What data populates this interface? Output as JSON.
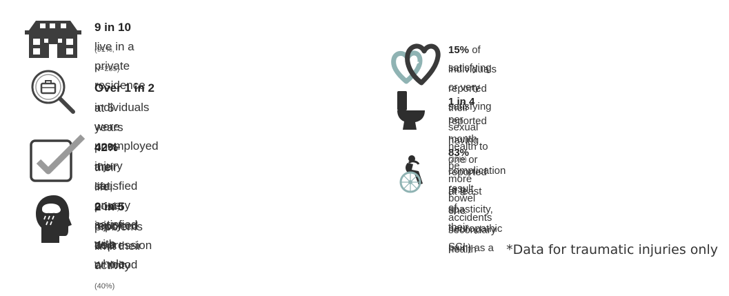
{
  "left_items": [
    {
      "icon": "house-icon",
      "bold": "9 in 10",
      "line1": " live in a private residence",
      "note": "(91%, N=285)",
      "line2": ""
    },
    {
      "icon": "job-search-icon",
      "bold": "Over 1 in 2",
      "line1": " individuals were unemployed",
      "line2": "at 5 years post-injury",
      "note": "(59%, N=210)"
    },
    {
      "icon": "checkbox-icon",
      "bold": "42%",
      "line1": " are satisfied or very satisfied with",
      "line2": "their life, post-injury as a whole",
      "note": ""
    },
    {
      "icon": "head-rain-cloud-icon",
      "bold": "2 in 5",
      "line1": " reported depression or mood",
      "line2": "problems limit their activity",
      "note": "(40%)"
    }
  ],
  "right_items": [
    {
      "icon": "hearts-icon",
      "bold": "15%",
      "line1": " of individuals reported their sexual health to be",
      "line2": "satisfying or very satisfying",
      "line3": "",
      "note": ""
    },
    {
      "icon": "toilet-icon",
      "bold": "1 in 4",
      "line1": " reported having one or more bowel accidents",
      "line2": "per month",
      "line3": "",
      "note": "(25%)"
    },
    {
      "icon": "wheelchair-icon",
      "bold": "83%",
      "line1": " reported at least one secondary health",
      "line2": "complication (e.g. spasticity, neuropathic pain) as a",
      "line3": "result of their SCI",
      "note": ""
    }
  ],
  "footnote": "*Data for traumatic injuries only",
  "colors": {
    "icon_dark": "#3d3d3d",
    "icon_teal": "#8fb3b3",
    "text": "#333333"
  }
}
